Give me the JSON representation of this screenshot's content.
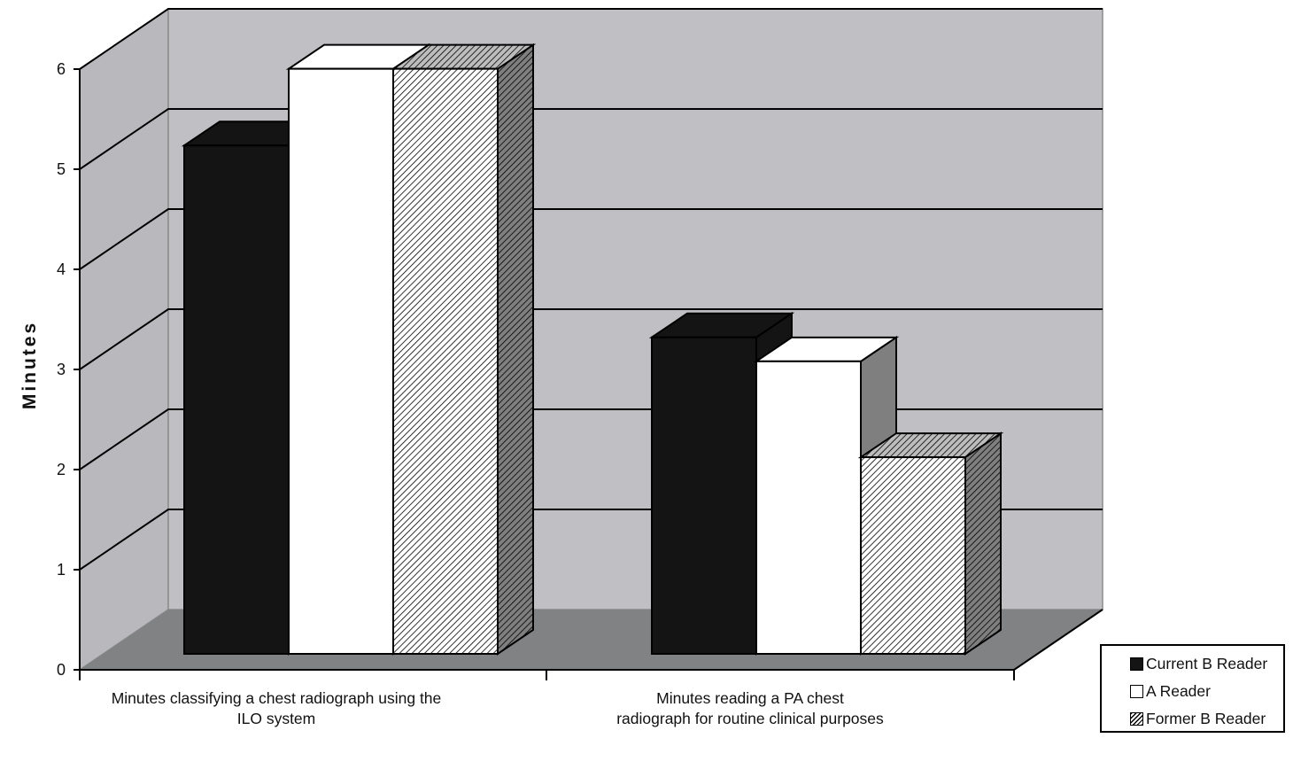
{
  "chart_data": {
    "type": "bar",
    "title": "",
    "xlabel": "",
    "ylabel": "Minutes",
    "ylim": [
      0,
      6
    ],
    "yticks": [
      "0",
      "1",
      "2",
      "3",
      "4",
      "5",
      "6"
    ],
    "categories": [
      [
        "Minutes classifying a chest radiograph using the",
        "ILO system"
      ],
      [
        "Minutes reading a PA chest",
        "radiograph for routine clinical purposes"
      ]
    ],
    "series": [
      {
        "name": "Current B Reader",
        "values": [
          5.3,
          3.3
        ],
        "fill": "black"
      },
      {
        "name": "A Reader",
        "values": [
          6.1,
          3.05
        ],
        "fill": "white"
      },
      {
        "name": "Former B Reader",
        "values": [
          6.1,
          2.05
        ],
        "fill": "hatch"
      }
    ],
    "legend_position": "bottom-right",
    "grid": true,
    "colors": {
      "wall": "#c0c0c4",
      "side_wall": "#b9b9bd",
      "floor": "#808284",
      "current_b": "#141414",
      "a_reader": "#ffffff",
      "hatch_face": "#ffffff",
      "hatch_side": "#7f7f7f"
    }
  }
}
